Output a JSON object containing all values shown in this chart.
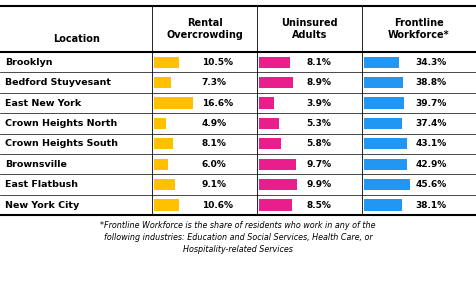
{
  "locations": [
    "Brooklyn",
    "Bedford Stuyvesant",
    "East New York",
    "Crown Heights North",
    "Crown Heights South",
    "Brownsville",
    "East Flatbush",
    "New York City"
  ],
  "rental_overcrowding": [
    10.5,
    7.3,
    16.6,
    4.9,
    8.1,
    6.0,
    9.1,
    10.6
  ],
  "uninsured_adults": [
    8.1,
    8.9,
    3.9,
    5.3,
    5.8,
    9.7,
    9.9,
    8.5
  ],
  "frontline_workforce": [
    34.3,
    38.8,
    39.7,
    37.4,
    43.1,
    42.9,
    45.6,
    38.1
  ],
  "rental_color": "#FFC000",
  "uninsured_color": "#E91E8C",
  "frontline_color": "#2196F3",
  "header_row": [
    "Location",
    "Rental\nOvercrowding",
    "Uninsured\nAdults",
    "Frontline\nWorkforce*"
  ],
  "footnote": "*Frontline Workforce is the share of residents who work in any of the\nfollowing industries: Education and Social Services, Health Care, or\nHospitality-related Services",
  "bg_color": "#FFFFFF",
  "text_color": "#000000",
  "bar_max_rental": 20,
  "bar_max_uninsured": 12,
  "bar_max_frontline": 50
}
